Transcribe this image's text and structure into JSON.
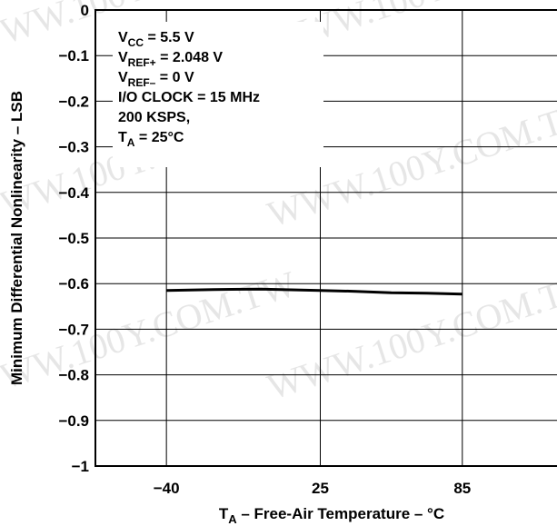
{
  "chart_data": {
    "type": "line",
    "xlabel": {
      "main": "T",
      "sub": "A",
      "rest": " – Free-Air Temperature – °C"
    },
    "ylabel": "Minimum Differential Nonlinearity – LSB",
    "x_ticks": [
      "−40",
      "25",
      "85"
    ],
    "y_ticks": [
      "0",
      "−0.1",
      "−0.2",
      "−0.3",
      "−0.4",
      "−0.5",
      "−0.6",
      "−0.7",
      "−0.8",
      "−0.9",
      "−1"
    ],
    "xlim": [
      -70,
      125
    ],
    "ylim": [
      -1,
      0
    ],
    "grid": true,
    "series": [
      {
        "x": [
          -40,
          -20,
          0,
          25,
          40,
          55,
          70,
          85
        ],
        "y": [
          -0.615,
          -0.613,
          -0.612,
          -0.615,
          -0.617,
          -0.62,
          -0.621,
          -0.623
        ]
      }
    ],
    "annotations": [
      {
        "main": "V",
        "sub": "CC",
        "rest": " = 5.5 V"
      },
      {
        "main": "V",
        "sub": "REF+",
        "rest": " = 2.048 V"
      },
      {
        "main": "V",
        "sub": "REF–",
        "rest": " = 0 V"
      },
      {
        "main": "I/O CLOCK = 15 MHz",
        "sub": "",
        "rest": ""
      },
      {
        "main": "200 KSPS,",
        "sub": "",
        "rest": ""
      },
      {
        "main": "T",
        "sub": "A",
        "rest": " = 25°C"
      }
    ],
    "watermark": "WWW.100Y.COM.TW"
  }
}
